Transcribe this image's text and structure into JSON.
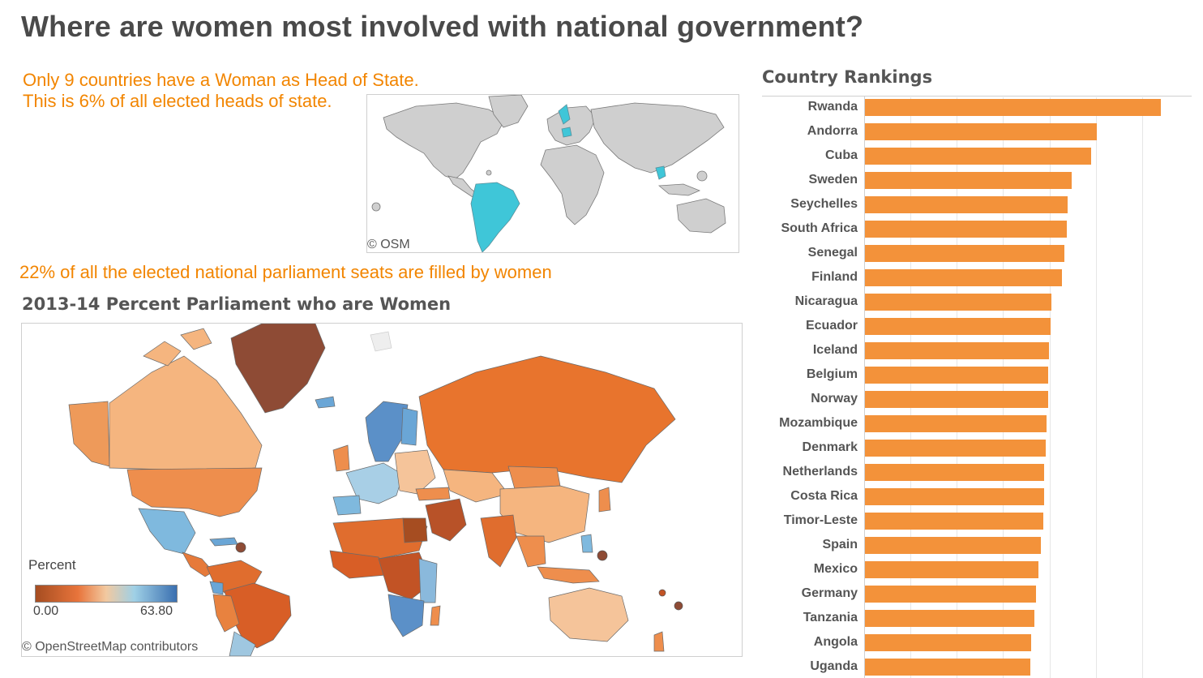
{
  "title": "Where are women most involved with national government?",
  "heads_of_state": {
    "line1": "Only 9 countries have a Woman as Head of State.",
    "line2": "This is 6% of all elected heads of state.",
    "map_credit": "© OSM",
    "highlight_color": "#3fc6d8"
  },
  "parliament": {
    "note": "22% of all the elected national parliament seats are filled by women",
    "map_title": "2013-14 Percent Parliament who are Women",
    "map_credit": "© OpenStreetMap contributors",
    "legend": {
      "title": "Percent",
      "min": "0.00",
      "max": "63.80"
    }
  },
  "rankings_title": "Country Rankings",
  "chart_data": {
    "type": "bar",
    "orientation": "horizontal",
    "title": "Country Rankings",
    "bar_color": "#f3923a",
    "xlim": [
      0,
      70
    ],
    "grid": true,
    "categories": [
      "Rwanda",
      "Andorra",
      "Cuba",
      "Sweden",
      "Seychelles",
      "South Africa",
      "Senegal",
      "Finland",
      "Nicaragua",
      "Ecuador",
      "Iceland",
      "Belgium",
      "Norway",
      "Mozambique",
      "Denmark",
      "Netherlands",
      "Costa Rica",
      "Timor-Leste",
      "Spain",
      "Mexico",
      "Germany",
      "Tanzania",
      "Angola",
      "Uganda"
    ],
    "values": [
      63.8,
      50.0,
      48.9,
      44.7,
      43.8,
      43.5,
      43.0,
      42.5,
      40.2,
      40.1,
      39.7,
      39.6,
      39.6,
      39.2,
      39.1,
      38.7,
      38.6,
      38.5,
      38.0,
      37.4,
      36.9,
      36.5,
      35.9,
      35.7
    ]
  }
}
